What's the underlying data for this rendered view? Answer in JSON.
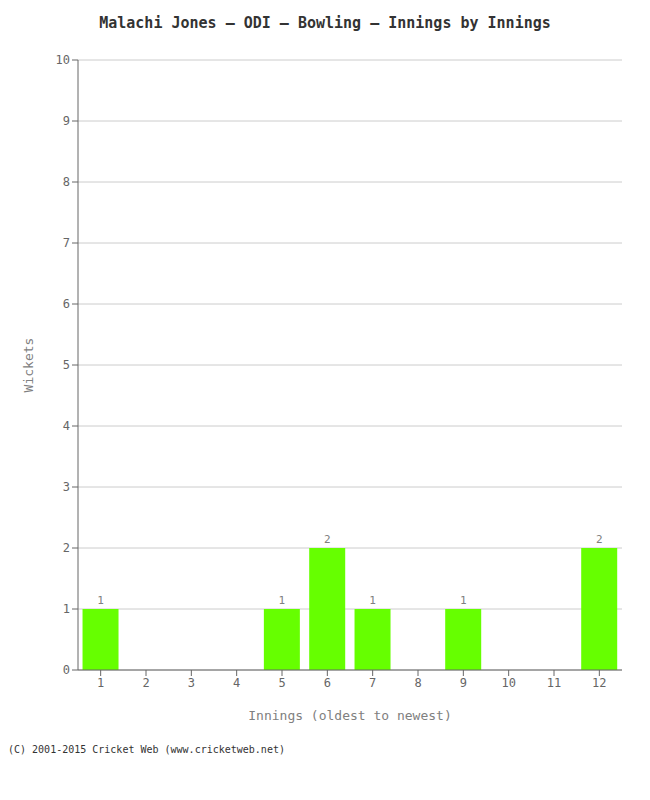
{
  "chart_data": {
    "type": "bar",
    "title": "Malachi Jones – ODI – Bowling – Innings by Innings",
    "xlabel": "Innings (oldest to newest)",
    "ylabel": "Wickets",
    "categories": [
      "1",
      "2",
      "3",
      "4",
      "5",
      "6",
      "7",
      "8",
      "9",
      "10",
      "11",
      "12"
    ],
    "values": [
      1,
      0,
      0,
      0,
      1,
      2,
      1,
      0,
      1,
      0,
      0,
      2
    ],
    "color": "#66ff00",
    "ylim": [
      0,
      10
    ],
    "yticks": [
      0,
      1,
      2,
      3,
      4,
      5,
      6,
      7,
      8,
      9,
      10
    ],
    "grid": true,
    "data_labels": true,
    "annotations": [
      "(C) 2001-2015 Cricket Web (www.cricketweb.net)"
    ]
  }
}
